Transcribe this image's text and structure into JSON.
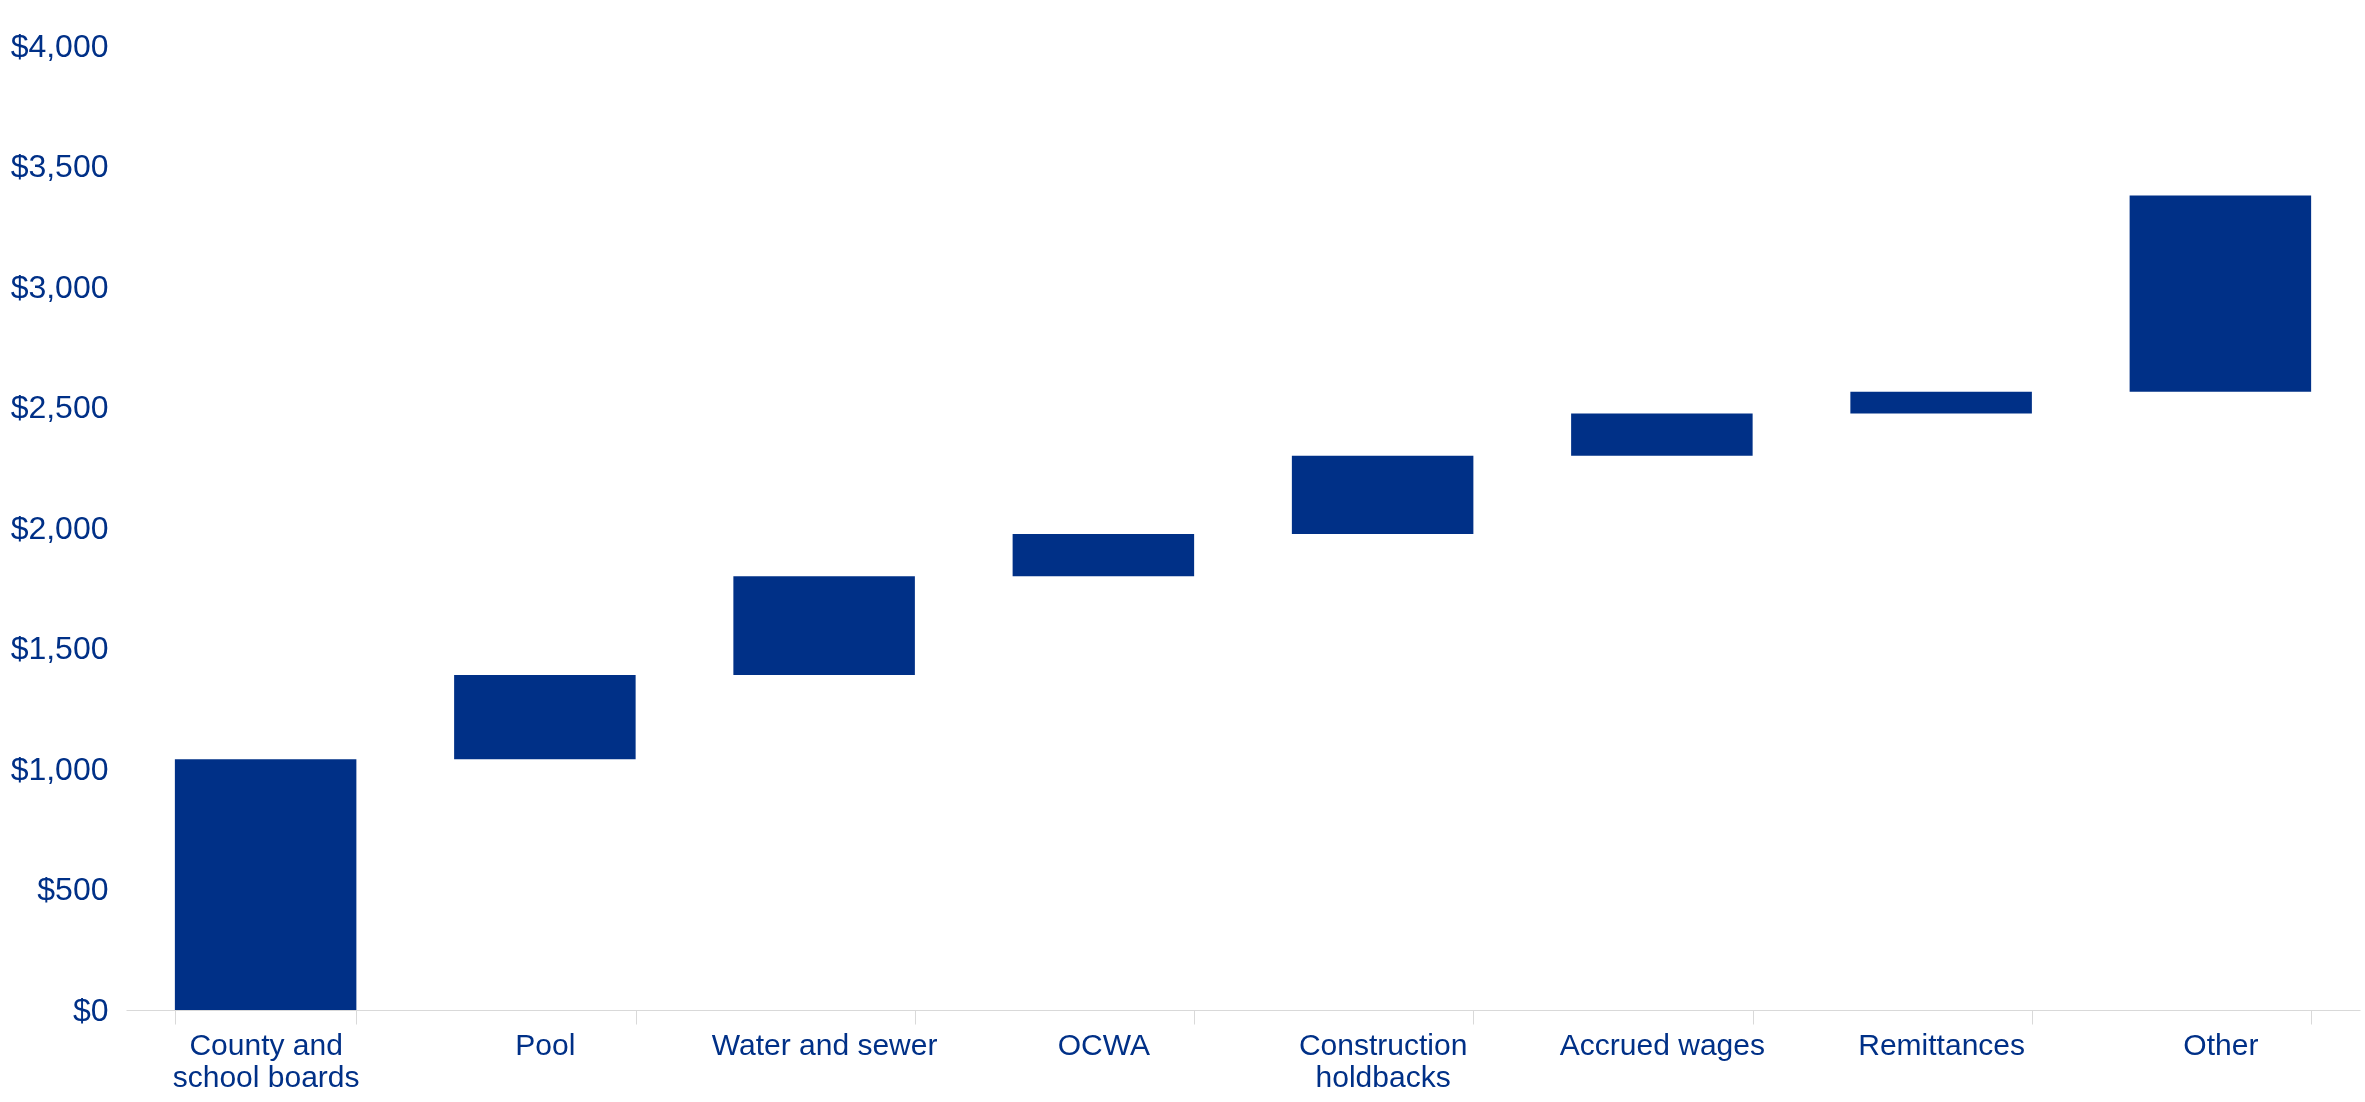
{
  "chart_data": {
    "type": "bar",
    "categories": [
      "County and\nschool boards",
      "Pool",
      "Water and sewer",
      "OCWA",
      "Construction\nholdbacks",
      "Accrued wages",
      "Remittances",
      "Other"
    ],
    "base": [
      0,
      1040,
      1390,
      1800,
      1975,
      2300,
      2475,
      2565
    ],
    "values": [
      1040,
      350,
      410,
      175,
      325,
      175,
      90,
      815
    ],
    "color": "#003087",
    "ylim": [
      0,
      4000
    ],
    "yticks": [
      {
        "value": 0,
        "label": "$0"
      },
      {
        "value": 500,
        "label": "$500"
      },
      {
        "value": 1000,
        "label": "$1,000"
      },
      {
        "value": 1500,
        "label": "$1,500"
      },
      {
        "value": 2000,
        "label": "$2,000"
      },
      {
        "value": 2500,
        "label": "$2,500"
      },
      {
        "value": 3000,
        "label": "$3,000"
      },
      {
        "value": 3500,
        "label": "$3,500"
      },
      {
        "value": 4000,
        "label": "$4,000"
      }
    ],
    "grid": false
  }
}
